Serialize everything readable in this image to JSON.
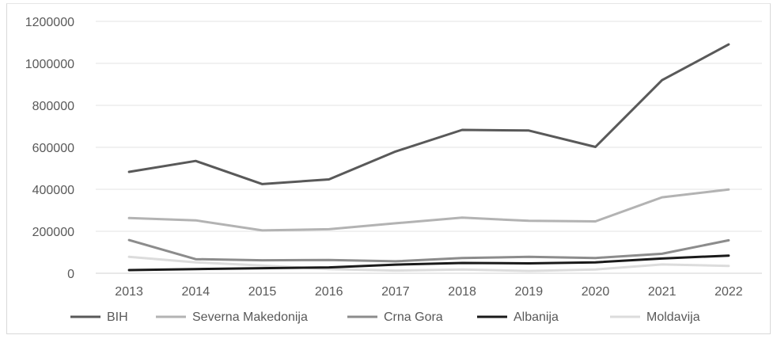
{
  "chart_data": {
    "type": "line",
    "title": "",
    "xlabel": "",
    "ylabel": "",
    "categories": [
      "2013",
      "2014",
      "2015",
      "2016",
      "2017",
      "2018",
      "2019",
      "2020",
      "2021",
      "2022"
    ],
    "ylim": [
      0,
      1200000
    ],
    "yticks": [
      "0",
      "200000",
      "400000",
      "600000",
      "800000",
      "1000000",
      "1200000"
    ],
    "grid": true,
    "legend_position": "bottom",
    "series": [
      {
        "name": "BIH",
        "color": "#595959",
        "width": 3,
        "values": [
          483000,
          535000,
          425000,
          447000,
          580000,
          683000,
          680000,
          602000,
          920000,
          1090000
        ]
      },
      {
        "name": "Severna Makedonija",
        "color": "#b3b3b3",
        "width": 3,
        "values": [
          263000,
          252000,
          204000,
          210000,
          238000,
          265000,
          250000,
          247000,
          362000,
          399000
        ]
      },
      {
        "name": "Crna Gora",
        "color": "#8c8c8c",
        "width": 3,
        "values": [
          158000,
          67000,
          62000,
          63000,
          57000,
          73000,
          78000,
          73000,
          93000,
          157000
        ]
      },
      {
        "name": "Albanija",
        "color": "#1a1a1a",
        "width": 3,
        "values": [
          15000,
          20000,
          24000,
          28000,
          41000,
          49000,
          47000,
          52000,
          70000,
          84000
        ]
      },
      {
        "name": "Moldavija",
        "color": "#dcdcdc",
        "width": 3,
        "values": [
          78000,
          52000,
          37000,
          20000,
          13000,
          18000,
          11000,
          18000,
          42000,
          35000
        ]
      }
    ]
  }
}
